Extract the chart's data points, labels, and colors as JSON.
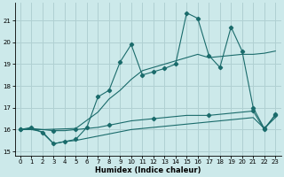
{
  "xlabel": "Humidex (Indice chaleur)",
  "background_color": "#cce9ea",
  "grid_color": "#b0d0d2",
  "line_color": "#1a6b6b",
  "xlim": [
    -0.5,
    23.5
  ],
  "ylim": [
    14.8,
    21.8
  ],
  "yticks": [
    15,
    16,
    17,
    18,
    19,
    20,
    21
  ],
  "xticks": [
    0,
    1,
    2,
    3,
    4,
    5,
    6,
    7,
    8,
    9,
    10,
    11,
    12,
    13,
    14,
    15,
    16,
    17,
    18,
    19,
    20,
    21,
    22,
    23
  ],
  "s1_x": [
    0,
    1,
    2,
    3,
    4,
    5,
    6,
    7,
    8,
    9,
    10,
    11,
    12,
    13,
    14,
    15,
    16,
    17,
    18,
    19,
    20,
    21,
    22,
    23
  ],
  "s1_y": [
    16.0,
    16.1,
    15.85,
    15.35,
    15.45,
    15.55,
    16.1,
    17.5,
    17.8,
    19.1,
    19.9,
    18.5,
    18.65,
    18.8,
    19.0,
    21.35,
    21.1,
    19.4,
    18.85,
    20.7,
    19.6,
    17.0,
    16.05,
    16.65
  ],
  "s2_x": [
    0,
    2,
    5,
    7,
    8,
    9,
    10,
    11,
    12,
    13,
    14,
    15,
    16,
    17,
    18,
    19,
    20,
    21,
    22,
    23
  ],
  "s2_y": [
    16.0,
    16.0,
    16.05,
    16.8,
    17.4,
    17.8,
    18.3,
    18.7,
    18.85,
    19.0,
    19.15,
    19.3,
    19.45,
    19.3,
    19.35,
    19.4,
    19.45,
    19.45,
    19.5,
    19.6
  ],
  "s3_x": [
    0,
    1,
    2,
    3,
    4,
    5,
    6,
    7,
    8,
    9,
    10,
    11,
    12,
    13,
    14,
    15,
    16,
    17,
    18,
    19,
    20,
    21,
    22,
    23
  ],
  "s3_y": [
    16.0,
    16.05,
    16.0,
    15.95,
    15.95,
    16.0,
    16.05,
    16.1,
    16.2,
    16.3,
    16.4,
    16.45,
    16.5,
    16.55,
    16.6,
    16.65,
    16.65,
    16.65,
    16.7,
    16.75,
    16.8,
    16.85,
    16.0,
    16.7
  ],
  "s4_x": [
    0,
    1,
    2,
    3,
    4,
    5,
    6,
    7,
    8,
    9,
    10,
    11,
    12,
    13,
    14,
    15,
    16,
    17,
    18,
    19,
    20,
    21,
    22,
    23
  ],
  "s4_y": [
    16.0,
    16.0,
    15.9,
    15.35,
    15.45,
    15.5,
    15.6,
    15.7,
    15.8,
    15.9,
    16.0,
    16.05,
    16.1,
    16.15,
    16.2,
    16.25,
    16.3,
    16.35,
    16.4,
    16.45,
    16.5,
    16.55,
    16.05,
    16.55
  ],
  "s3_markers_x": [
    0,
    3,
    5,
    8,
    12,
    17,
    21,
    22,
    23
  ],
  "s3_markers_y": [
    16.0,
    15.95,
    16.0,
    16.2,
    16.5,
    16.65,
    16.85,
    16.0,
    16.7
  ]
}
